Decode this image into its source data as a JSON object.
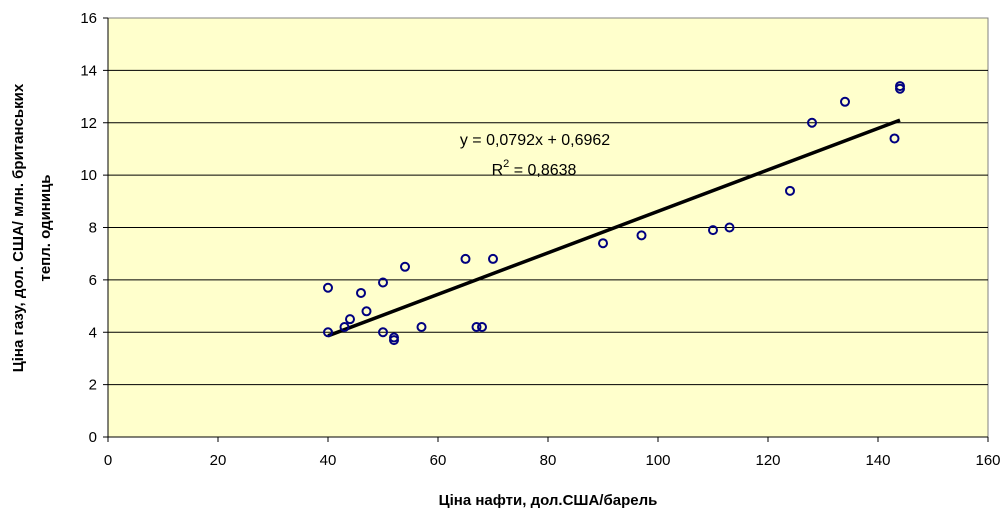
{
  "chart_data": {
    "type": "scatter",
    "xlabel": "Ціна нафти, дол.США/барель",
    "ylabel_line1": "Ціна газу, дол. США/ млн. британських",
    "ylabel_line2": "тепл. одиниць",
    "xlim": [
      0,
      160
    ],
    "ylim": [
      0,
      16
    ],
    "x_ticks": [
      "0",
      "20",
      "40",
      "60",
      "80",
      "100",
      "120",
      "140",
      "160"
    ],
    "y_ticks": [
      "0",
      "2",
      "4",
      "6",
      "8",
      "10",
      "12",
      "14",
      "16"
    ],
    "grid": "horizontal",
    "plot_background": "#FFFFCC",
    "marker_color": "#000080",
    "trendline": {
      "slope": 0.0792,
      "intercept": 0.6962,
      "x_range": [
        40,
        144
      ],
      "equation": "y = 0,0792x + 0,6962",
      "r2_prefix": "R",
      "r2_sup": "2",
      "r2_suffix": " = 0,8638",
      "color": "#000000"
    },
    "points": [
      {
        "x": 40,
        "y": 5.7
      },
      {
        "x": 40,
        "y": 4.0
      },
      {
        "x": 43,
        "y": 4.2
      },
      {
        "x": 44,
        "y": 4.5
      },
      {
        "x": 46,
        "y": 5.5
      },
      {
        "x": 47,
        "y": 4.8
      },
      {
        "x": 50,
        "y": 5.9
      },
      {
        "x": 50,
        "y": 4.0
      },
      {
        "x": 52,
        "y": 3.8
      },
      {
        "x": 52,
        "y": 3.7
      },
      {
        "x": 54,
        "y": 6.5
      },
      {
        "x": 57,
        "y": 4.2
      },
      {
        "x": 65,
        "y": 6.8
      },
      {
        "x": 67,
        "y": 4.2
      },
      {
        "x": 68,
        "y": 4.2
      },
      {
        "x": 70,
        "y": 6.8
      },
      {
        "x": 90,
        "y": 7.4
      },
      {
        "x": 97,
        "y": 7.7
      },
      {
        "x": 110,
        "y": 7.9
      },
      {
        "x": 113,
        "y": 8.0
      },
      {
        "x": 124,
        "y": 9.4
      },
      {
        "x": 128,
        "y": 12.0
      },
      {
        "x": 134,
        "y": 12.8
      },
      {
        "x": 143,
        "y": 11.4
      },
      {
        "x": 144,
        "y": 13.4
      },
      {
        "x": 144,
        "y": 13.3
      }
    ]
  }
}
